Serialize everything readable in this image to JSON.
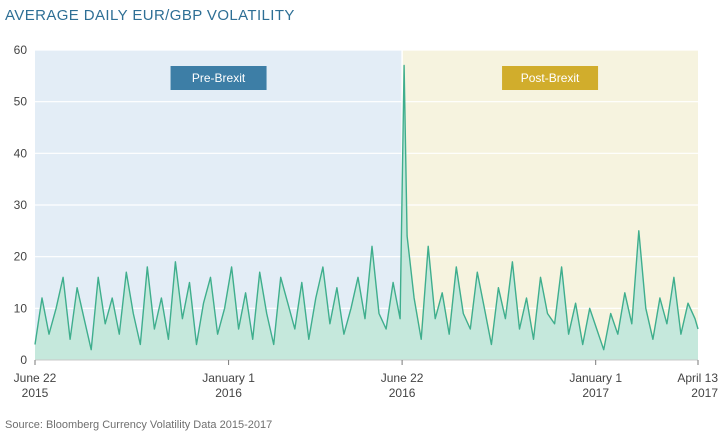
{
  "chart_data": {
    "type": "area",
    "title": "AVERAGE DAILY EUR/GBP VOLATILITY",
    "source": "Source: Bloomberg Currency Volatility Data 2015-2017",
    "ylim": [
      0,
      60
    ],
    "y_ticks": [
      0,
      10,
      20,
      30,
      40,
      50,
      60
    ],
    "x_range": [
      "2015-06-22",
      "2017-04-13"
    ],
    "x_ticks": [
      {
        "date": "2015-06-22",
        "line1": "June 22",
        "line2": "2015"
      },
      {
        "date": "2016-01-01",
        "line1": "January 1",
        "line2": "2016"
      },
      {
        "date": "2016-06-22",
        "line1": "June 22",
        "line2": "2016"
      },
      {
        "date": "2017-01-01",
        "line1": "January 1",
        "line2": "2017"
      },
      {
        "date": "2017-04-13",
        "line1": "April 13",
        "line2": "2017"
      }
    ],
    "regions": [
      {
        "label": "Pre-Brexit",
        "from": "2015-06-22",
        "to": "2016-06-22",
        "fill": "#e3edf6",
        "badge": "#3d7ea6"
      },
      {
        "label": "Post-Brexit",
        "from": "2016-06-22",
        "to": "2017-04-13",
        "fill": "#f6f3df",
        "badge": "#d1ad2c"
      }
    ],
    "colors": {
      "line": "#3fae8d",
      "area": "#c5e8dc",
      "divider": "#ffffff"
    },
    "series": [
      {
        "x": [
          "2015-06-22",
          "2015-06-29",
          "2015-07-06",
          "2015-07-13",
          "2015-07-20",
          "2015-07-27",
          "2015-08-03",
          "2015-08-10",
          "2015-08-17",
          "2015-08-24",
          "2015-08-31",
          "2015-09-07",
          "2015-09-14",
          "2015-09-21",
          "2015-09-28",
          "2015-10-05",
          "2015-10-12",
          "2015-10-19",
          "2015-10-26",
          "2015-11-02",
          "2015-11-09",
          "2015-11-16",
          "2015-11-23",
          "2015-11-30",
          "2015-12-07",
          "2015-12-14",
          "2015-12-21",
          "2015-12-28",
          "2016-01-04",
          "2016-01-11",
          "2016-01-18",
          "2016-01-25",
          "2016-02-01",
          "2016-02-08",
          "2016-02-15",
          "2016-02-22",
          "2016-02-29",
          "2016-03-07",
          "2016-03-14",
          "2016-03-21",
          "2016-03-28",
          "2016-04-04",
          "2016-04-11",
          "2016-04-18",
          "2016-04-25",
          "2016-05-02",
          "2016-05-09",
          "2016-05-16",
          "2016-05-23",
          "2016-05-30",
          "2016-06-06",
          "2016-06-13",
          "2016-06-20",
          "2016-06-24",
          "2016-06-27",
          "2016-07-04",
          "2016-07-11",
          "2016-07-18",
          "2016-07-25",
          "2016-08-01",
          "2016-08-08",
          "2016-08-15",
          "2016-08-22",
          "2016-08-29",
          "2016-09-05",
          "2016-09-12",
          "2016-09-19",
          "2016-09-26",
          "2016-10-03",
          "2016-10-10",
          "2016-10-17",
          "2016-10-24",
          "2016-10-31",
          "2016-11-07",
          "2016-11-14",
          "2016-11-21",
          "2016-11-28",
          "2016-12-05",
          "2016-12-12",
          "2016-12-19",
          "2016-12-26",
          "2017-01-02",
          "2017-01-09",
          "2017-01-16",
          "2017-01-23",
          "2017-01-30",
          "2017-02-06",
          "2017-02-13",
          "2017-02-20",
          "2017-02-27",
          "2017-03-06",
          "2017-03-13",
          "2017-03-20",
          "2017-03-27",
          "2017-04-03",
          "2017-04-10",
          "2017-04-13"
        ],
        "values": [
          3,
          12,
          5,
          10,
          16,
          4,
          14,
          8,
          2,
          16,
          7,
          12,
          5,
          17,
          9,
          3,
          18,
          6,
          12,
          4,
          19,
          8,
          15,
          3,
          11,
          16,
          5,
          10,
          18,
          6,
          13,
          4,
          17,
          9,
          3,
          16,
          11,
          6,
          15,
          4,
          12,
          18,
          7,
          14,
          5,
          10,
          16,
          8,
          22,
          9,
          6,
          15,
          8,
          57,
          24,
          12,
          4,
          22,
          8,
          13,
          5,
          18,
          9,
          6,
          17,
          10,
          3,
          14,
          8,
          19,
          6,
          12,
          4,
          16,
          9,
          7,
          18,
          5,
          11,
          3,
          10,
          6,
          2,
          9,
          5,
          13,
          7,
          25,
          10,
          4,
          12,
          7,
          16,
          5,
          11,
          8,
          6
        ]
      }
    ]
  }
}
